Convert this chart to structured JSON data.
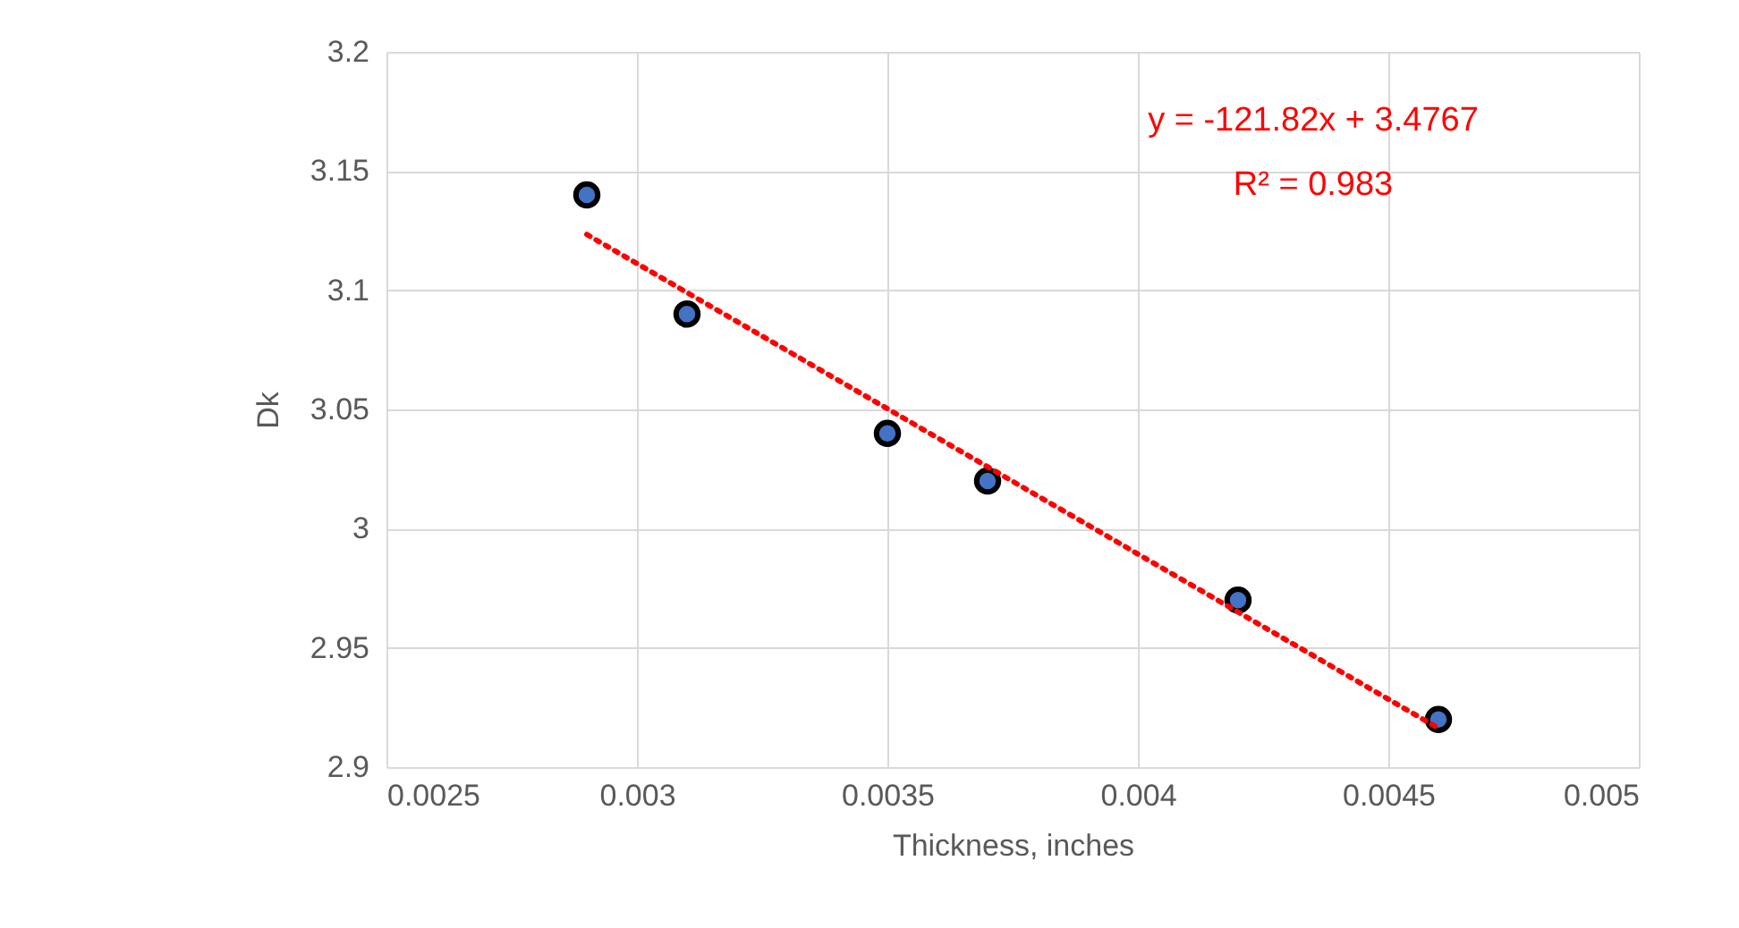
{
  "chart_data": {
    "type": "scatter",
    "xlabel": "Thickness, inches",
    "ylabel": "Dk",
    "series": [
      {
        "color": "#4472c4",
        "x": [
          0.0029,
          0.0031,
          0.0035,
          0.0037,
          0.0042,
          0.0046
        ],
        "values": [
          3.14,
          3.09,
          3.04,
          3.02,
          2.97,
          2.92
        ],
        "marker": "circle"
      },
      {
        "type": "line",
        "color": "#ff0000",
        "x": [
          0.0029,
          0.0046
        ],
        "values": [
          3.1234,
          2.9163
        ],
        "line_style": "dotted"
      }
    ],
    "annotations": [
      "y = -121.82x + 3.4767",
      "R² = 0.983"
    ],
    "xlim": [
      0.0025,
      0.005
    ],
    "xticks": [
      0.0025,
      0.003,
      0.0035,
      0.004,
      0.0045,
      0.005
    ],
    "ylim": [
      2.9,
      3.2
    ],
    "yticks": [
      2.9,
      2.95,
      3,
      3.05,
      3.1,
      3.15,
      3.2
    ],
    "grid": true
  }
}
